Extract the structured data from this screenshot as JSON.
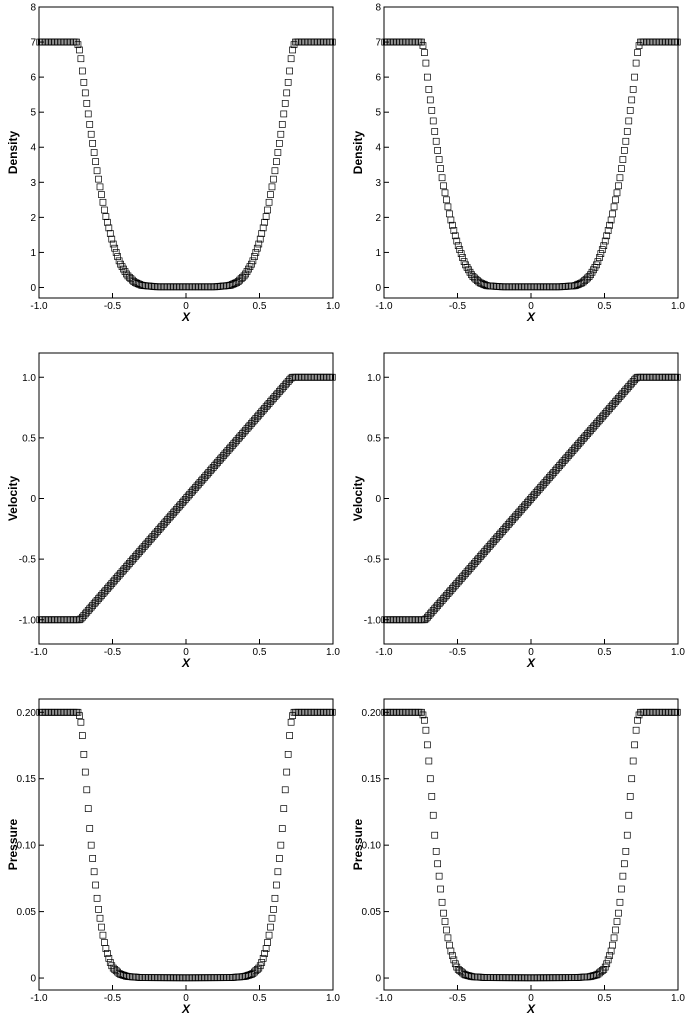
{
  "chart_data": [
    {
      "type": "scatter",
      "id": "density-left",
      "marker": "square",
      "ylabel": "Density",
      "xlabel": "X",
      "xlim": [
        -1.0,
        1.0
      ],
      "ylim": [
        -0.3,
        8
      ],
      "xticks": [
        "-1.0",
        "-0.5",
        "0",
        "0.5",
        "1.0"
      ],
      "yticks": [
        "0",
        "1",
        "2",
        "3",
        "4",
        "5",
        "6",
        "7",
        "8"
      ],
      "series": [
        {
          "x": [
            -1.0,
            -0.74,
            -0.72,
            -0.7,
            -0.65,
            -0.6,
            -0.55,
            -0.5,
            -0.45,
            -0.4,
            -0.35,
            -0.3,
            -0.2,
            0.0,
            0.2,
            0.3,
            0.35,
            0.4,
            0.45,
            0.5,
            0.55,
            0.6,
            0.65,
            0.7,
            0.72,
            0.74,
            1.0
          ],
          "y": [
            7.0,
            7.0,
            6.7,
            6.0,
            4.5,
            3.2,
            2.1,
            1.3,
            0.7,
            0.35,
            0.15,
            0.06,
            0.02,
            0.02,
            0.02,
            0.06,
            0.15,
            0.35,
            0.7,
            1.3,
            2.1,
            3.2,
            4.5,
            6.0,
            6.7,
            7.0,
            7.0
          ]
        }
      ]
    },
    {
      "type": "scatter",
      "id": "density-right",
      "marker": "square",
      "ylabel": "Density",
      "xlabel": "X",
      "xlim": [
        -1.0,
        1.0
      ],
      "ylim": [
        -0.3,
        8
      ],
      "xticks": [
        "-1.0",
        "-0.5",
        "0",
        "0.5",
        "1.0"
      ],
      "yticks": [
        "0",
        "1",
        "2",
        "3",
        "4",
        "5",
        "6",
        "7",
        "8"
      ],
      "series": [
        {
          "x": [
            -1.0,
            -0.74,
            -0.72,
            -0.7,
            -0.65,
            -0.6,
            -0.55,
            -0.5,
            -0.45,
            -0.4,
            -0.35,
            -0.3,
            -0.2,
            0.0,
            0.2,
            0.3,
            0.35,
            0.4,
            0.45,
            0.5,
            0.55,
            0.6,
            0.65,
            0.7,
            0.72,
            0.74,
            1.0
          ],
          "y": [
            7.0,
            7.0,
            6.6,
            5.8,
            4.3,
            3.0,
            2.0,
            1.25,
            0.68,
            0.33,
            0.14,
            0.05,
            0.02,
            0.02,
            0.02,
            0.05,
            0.14,
            0.33,
            0.68,
            1.25,
            2.0,
            3.0,
            4.3,
            5.8,
            6.6,
            7.0,
            7.0
          ]
        }
      ]
    },
    {
      "type": "scatter",
      "id": "velocity-left",
      "marker": "square",
      "ylabel": "Velocity",
      "xlabel": "X",
      "xlim": [
        -1.0,
        1.0
      ],
      "ylim": [
        -1.2,
        1.2
      ],
      "xticks": [
        "-1.0",
        "-0.5",
        "0",
        "0.5",
        "1.0"
      ],
      "yticks": [
        "-1.0",
        "-0.5",
        "0",
        "0.5",
        "1.0"
      ],
      "series": [
        {
          "x": [
            -1.0,
            -0.72,
            0.72,
            1.0
          ],
          "y": [
            -1.0,
            -1.0,
            1.0,
            1.0
          ]
        }
      ]
    },
    {
      "type": "scatter",
      "id": "velocity-right",
      "marker": "square",
      "ylabel": "Velocity",
      "xlabel": "X",
      "xlim": [
        -1.0,
        1.0
      ],
      "ylim": [
        -1.2,
        1.2
      ],
      "xticks": [
        "-1.0",
        "-0.5",
        "0",
        "0.5",
        "1.0"
      ],
      "yticks": [
        "-1.0",
        "-0.5",
        "0",
        "0.5",
        "1.0"
      ],
      "series": [
        {
          "x": [
            -1.0,
            -0.72,
            0.72,
            1.0
          ],
          "y": [
            -1.0,
            -1.0,
            1.0,
            1.0
          ]
        }
      ]
    },
    {
      "type": "scatter",
      "id": "pressure-left",
      "marker": "square",
      "ylabel": "Pressure",
      "xlabel": "X",
      "xlim": [
        -1.0,
        1.0
      ],
      "ylim": [
        -0.009,
        0.21
      ],
      "xticks": [
        "-1.0",
        "-0.5",
        "0",
        "0.5",
        "1.0"
      ],
      "yticks": [
        "0",
        "0.05",
        "0.10",
        "0.15",
        "0.20"
      ],
      "series": [
        {
          "x": [
            -1.0,
            -0.73,
            -0.71,
            -0.7,
            -0.67,
            -0.65,
            -0.62,
            -0.6,
            -0.57,
            -0.55,
            -0.52,
            -0.5,
            -0.45,
            -0.4,
            -0.3,
            0.0,
            0.3,
            0.4,
            0.45,
            0.5,
            0.52,
            0.55,
            0.57,
            0.6,
            0.62,
            0.65,
            0.67,
            0.7,
            0.71,
            0.73,
            1.0
          ],
          "y": [
            0.2,
            0.2,
            0.19,
            0.175,
            0.135,
            0.105,
            0.075,
            0.055,
            0.035,
            0.024,
            0.013,
            0.008,
            0.003,
            0.0012,
            0.0003,
            0.0002,
            0.0003,
            0.0012,
            0.003,
            0.008,
            0.013,
            0.024,
            0.035,
            0.055,
            0.075,
            0.105,
            0.135,
            0.175,
            0.19,
            0.2,
            0.2
          ]
        }
      ]
    },
    {
      "type": "scatter",
      "id": "pressure-right",
      "marker": "square",
      "ylabel": "Pressure",
      "xlabel": "X",
      "xlim": [
        -1.0,
        1.0
      ],
      "ylim": [
        -0.009,
        0.21
      ],
      "xticks": [
        "-1.0",
        "-0.5",
        "0",
        "0.5",
        "1.0"
      ],
      "yticks": [
        "0",
        "0.05",
        "0.10",
        "0.15",
        "0.20"
      ],
      "series": [
        {
          "x": [
            -1.0,
            -0.74,
            -0.72,
            -0.7,
            -0.67,
            -0.65,
            -0.62,
            -0.6,
            -0.57,
            -0.55,
            -0.52,
            -0.5,
            -0.45,
            -0.4,
            -0.3,
            0.0,
            0.3,
            0.4,
            0.45,
            0.5,
            0.52,
            0.55,
            0.57,
            0.6,
            0.62,
            0.65,
            0.67,
            0.7,
            0.72,
            0.74,
            1.0
          ],
          "y": [
            0.2,
            0.2,
            0.192,
            0.17,
            0.13,
            0.1,
            0.072,
            0.052,
            0.033,
            0.022,
            0.012,
            0.007,
            0.0025,
            0.001,
            0.0003,
            0.0002,
            0.0003,
            0.001,
            0.0025,
            0.007,
            0.012,
            0.022,
            0.033,
            0.052,
            0.072,
            0.1,
            0.13,
            0.17,
            0.192,
            0.2,
            0.2
          ]
        }
      ]
    }
  ]
}
